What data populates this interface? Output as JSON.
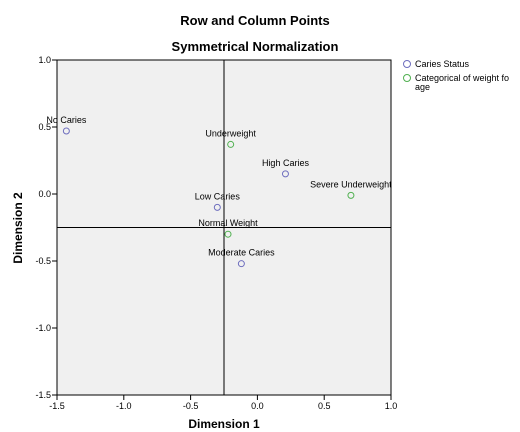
{
  "chart_data": {
    "type": "scatter",
    "title": "Row and Column Points",
    "subtitle": "Symmetrical Normalization",
    "xlabel": "Dimension 1",
    "ylabel": "Dimension 2",
    "xlim": [
      -1.5,
      1.0
    ],
    "ylim": [
      -1.5,
      1.0
    ],
    "x_ticks": [
      -1.5,
      -1.0,
      -0.5,
      0.0,
      0.5,
      1.0
    ],
    "x_tick_labels": [
      "-1.5",
      "-1.0",
      "-0.5",
      "0.0",
      "0.5",
      "1.0"
    ],
    "y_ticks": [
      -1.5,
      -1.0,
      -0.5,
      0.0,
      0.5,
      1.0
    ],
    "y_tick_labels": [
      "-1.5",
      "-1.0",
      "-0.5",
      "0.0",
      "0.5",
      "1.0"
    ],
    "reference_lines": {
      "x": -0.25,
      "y": -0.25
    },
    "legend_position": "top-right",
    "series": [
      {
        "name": "Caries Status",
        "color": "#6e6ebe",
        "points": [
          {
            "label": "No Caries",
            "x": -1.43,
            "y": 0.47
          },
          {
            "label": "High Caries",
            "x": 0.21,
            "y": 0.15
          },
          {
            "label": "Low Caries",
            "x": -0.3,
            "y": -0.1
          },
          {
            "label": "Moderate Caries",
            "x": -0.12,
            "y": -0.52
          }
        ]
      },
      {
        "name": "Categorical of weight fo age",
        "color": "#50b050",
        "points": [
          {
            "label": "Underweight",
            "x": -0.2,
            "y": 0.37
          },
          {
            "label": "Severe Underweight",
            "x": 0.7,
            "y": -0.01
          },
          {
            "label": "Normal Weight",
            "x": -0.22,
            "y": -0.3
          }
        ]
      }
    ]
  }
}
